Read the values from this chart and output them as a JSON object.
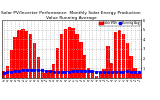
{
  "title": "Solar PV/Inverter Performance  Monthly Solar Energy Production Value Running Average",
  "title_fontsize": 3.2,
  "bar_color": "#ff0000",
  "avg_color": "#0000ff",
  "legend_bar_label": "Solar kWh",
  "legend_line_label": "Running Avg",
  "background_color": "#ffffff",
  "grid_color": "#b0b0b0",
  "ylim": [
    0,
    600
  ],
  "ytick_labels": [
    "1.",
    "2.",
    "3.",
    "4.",
    "5.",
    "6."
  ],
  "ytick_values": [
    100,
    200,
    300,
    400,
    500,
    600
  ],
  "categories": [
    "",
    "",
    "",
    "",
    "",
    "",
    "",
    "",
    "",
    "",
    "",
    "",
    "",
    "",
    "",
    "",
    "",
    "",
    "",
    "",
    "",
    "",
    "",
    "",
    "",
    "",
    "",
    "",
    "",
    "",
    "",
    "",
    "",
    "",
    "",
    ""
  ],
  "values": [
    75,
    120,
    290,
    420,
    500,
    510,
    490,
    450,
    360,
    215,
    90,
    50,
    85,
    140,
    310,
    450,
    510,
    530,
    520,
    460,
    370,
    235,
    100,
    60,
    25,
    60,
    90,
    330,
    160,
    480,
    500,
    450,
    360,
    230,
    100,
    55
  ],
  "running_avg": [
    55,
    60,
    65,
    70,
    75,
    78,
    80,
    82,
    83,
    82,
    78,
    72,
    68,
    65,
    63,
    63,
    65,
    67,
    70,
    72,
    74,
    74,
    72,
    69,
    65,
    63,
    61,
    61,
    62,
    64,
    66,
    67,
    68,
    67,
    65,
    63
  ]
}
